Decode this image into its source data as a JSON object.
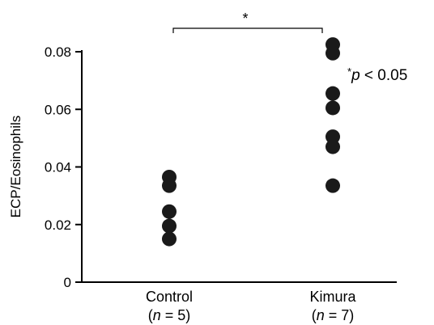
{
  "chart_data": {
    "type": "scatter",
    "ylabel": "ECP/Eosinophils",
    "ylim": [
      0,
      0.08
    ],
    "yticks": [
      "0",
      "0.02",
      "0.04",
      "0.06",
      "0.08"
    ],
    "categories": [
      {
        "name": "Control",
        "n_prefix": "(",
        "n_var": "n",
        "n_eq": " = 5)"
      },
      {
        "name": "Kimura",
        "n_prefix": "(",
        "n_var": "n",
        "n_eq": " = 7)"
      }
    ],
    "series": [
      {
        "category": "Control",
        "values": [
          0.0365,
          0.0335,
          0.0245,
          0.0195,
          0.015
        ]
      },
      {
        "category": "Kimura",
        "values": [
          0.0825,
          0.0795,
          0.0655,
          0.0605,
          0.0505,
          0.047,
          0.0335
        ]
      }
    ],
    "significance": {
      "star": "*"
    },
    "p_note": {
      "star": "*",
      "var": "p",
      "rest": " < 0.05"
    }
  }
}
